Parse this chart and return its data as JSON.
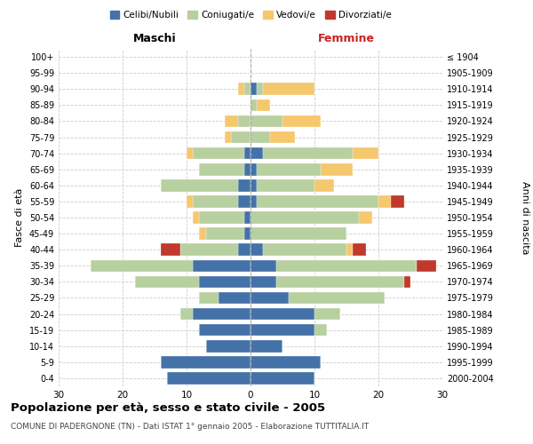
{
  "age_groups": [
    "0-4",
    "5-9",
    "10-14",
    "15-19",
    "20-24",
    "25-29",
    "30-34",
    "35-39",
    "40-44",
    "45-49",
    "50-54",
    "55-59",
    "60-64",
    "65-69",
    "70-74",
    "75-79",
    "80-84",
    "85-89",
    "90-94",
    "95-99",
    "100+"
  ],
  "birth_years": [
    "2000-2004",
    "1995-1999",
    "1990-1994",
    "1985-1989",
    "1980-1984",
    "1975-1979",
    "1970-1974",
    "1965-1969",
    "1960-1964",
    "1955-1959",
    "1950-1954",
    "1945-1949",
    "1940-1944",
    "1935-1939",
    "1930-1934",
    "1925-1929",
    "1920-1924",
    "1915-1919",
    "1910-1914",
    "1905-1909",
    "≤ 1904"
  ],
  "males": {
    "celibi": [
      13,
      14,
      7,
      8,
      9,
      5,
      8,
      9,
      2,
      1,
      1,
      2,
      2,
      1,
      1,
      0,
      0,
      0,
      0,
      0,
      0
    ],
    "coniugati": [
      0,
      0,
      0,
      0,
      2,
      3,
      10,
      16,
      9,
      6,
      7,
      7,
      12,
      7,
      8,
      3,
      2,
      0,
      1,
      0,
      0
    ],
    "vedovi": [
      0,
      0,
      0,
      0,
      0,
      0,
      0,
      0,
      0,
      1,
      1,
      1,
      0,
      0,
      1,
      1,
      2,
      0,
      1,
      0,
      0
    ],
    "divorziati": [
      0,
      0,
      0,
      0,
      0,
      0,
      0,
      0,
      3,
      0,
      0,
      0,
      0,
      0,
      0,
      0,
      0,
      0,
      0,
      0,
      0
    ]
  },
  "females": {
    "nubili": [
      10,
      11,
      5,
      10,
      10,
      6,
      4,
      4,
      2,
      0,
      0,
      1,
      1,
      1,
      2,
      0,
      0,
      0,
      1,
      0,
      0
    ],
    "coniugate": [
      0,
      0,
      0,
      2,
      4,
      15,
      20,
      22,
      13,
      15,
      17,
      19,
      9,
      10,
      14,
      3,
      5,
      1,
      1,
      0,
      0
    ],
    "vedove": [
      0,
      0,
      0,
      0,
      0,
      0,
      0,
      0,
      1,
      0,
      2,
      2,
      3,
      5,
      4,
      4,
      6,
      2,
      8,
      0,
      0
    ],
    "divorziate": [
      0,
      0,
      0,
      0,
      0,
      0,
      1,
      3,
      2,
      0,
      0,
      2,
      0,
      0,
      0,
      0,
      0,
      0,
      0,
      0,
      0
    ]
  },
  "colors": {
    "celibi": "#4472a8",
    "coniugati": "#b8cfa0",
    "vedovi": "#f5c86e",
    "divorziati": "#c0392b"
  },
  "title": "Popolazione per età, sesso e stato civile - 2005",
  "subtitle": "COMUNE DI PADERGNONE (TN) - Dati ISTAT 1° gennaio 2005 - Elaborazione TUTTITALIA.IT",
  "xlabel_left": "Maschi",
  "xlabel_right": "Femmine",
  "ylabel_left": "Fasce di età",
  "ylabel_right": "Anni di nascita",
  "xlim": 30,
  "background_color": "#ffffff",
  "grid_color": "#cccccc"
}
